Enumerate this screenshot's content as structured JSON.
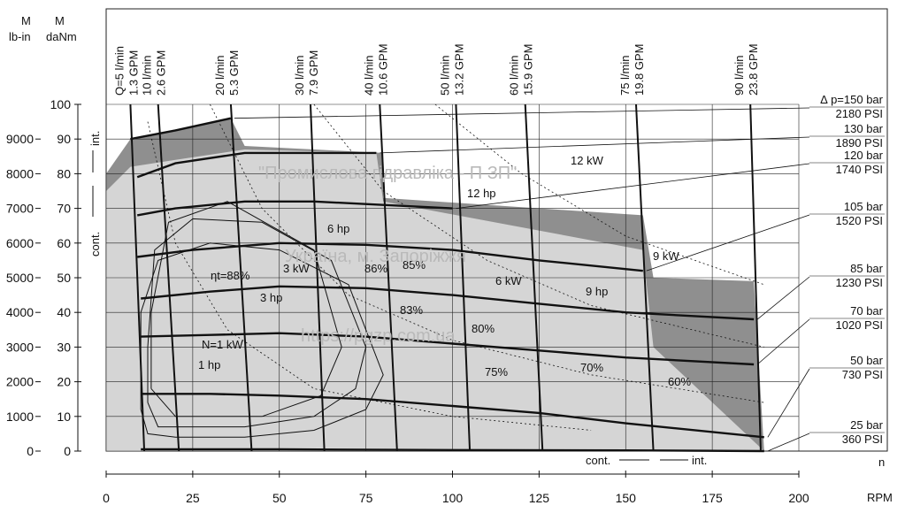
{
  "chart_data": {
    "type": "area",
    "axes": {
      "x": {
        "label": "RPM",
        "name": "n",
        "min": 0,
        "max": 200,
        "ticks": [
          0,
          25,
          50,
          75,
          100,
          125,
          150,
          175,
          200
        ]
      },
      "y_left_outer": {
        "label": "M",
        "unit": "lb-in",
        "min": 0,
        "max": 9000,
        "ticks": [
          0,
          1000,
          2000,
          3000,
          4000,
          5000,
          6000,
          7000,
          8000,
          9000
        ]
      },
      "y_left_inner": {
        "label": "M",
        "unit": "daNm",
        "min": 0,
        "max": 100,
        "ticks": [
          0,
          10,
          20,
          30,
          40,
          50,
          60,
          70,
          80,
          90,
          100
        ]
      }
    },
    "flow_lines": [
      {
        "lpm": "Q=5 l/min",
        "gpm": "1.3 GPM",
        "rpm_top": 7,
        "rpm_bottom": 11
      },
      {
        "lpm": "10 l/min",
        "gpm": "2.6 GPM",
        "rpm_top": 15,
        "rpm_bottom": 21
      },
      {
        "lpm": "20 l/min",
        "gpm": "5.3 GPM",
        "rpm_top": 36,
        "rpm_bottom": 42
      },
      {
        "lpm": "30 l/min",
        "gpm": "7.9 GPM",
        "rpm_top": 59,
        "rpm_bottom": 63
      },
      {
        "lpm": "40 l/min",
        "gpm": "10.6 GPM",
        "rpm_top": 79,
        "rpm_bottom": 84
      },
      {
        "lpm": "50 l/min",
        "gpm": "13.2 GPM",
        "rpm_top": 101,
        "rpm_bottom": 105
      },
      {
        "lpm": "60 l/min",
        "gpm": "15.9 GPM",
        "rpm_top": 121,
        "rpm_bottom": 126
      },
      {
        "lpm": "75 l/min",
        "gpm": "19.8 GPM",
        "rpm_top": 153,
        "rpm_bottom": 158
      },
      {
        "lpm": "90 l/min",
        "gpm": "23.8 GPM",
        "rpm_top": 186,
        "rpm_bottom": 189
      }
    ],
    "pressure_lines": [
      {
        "bar": "∆ p=150 bar",
        "psi": "2180 PSI",
        "points": [
          [
            7,
            90
          ],
          [
            20,
            92.5
          ],
          [
            36,
            96
          ]
        ]
      },
      {
        "bar": "130 bar",
        "psi": "1890 PSI",
        "points": [
          [
            9,
            79
          ],
          [
            20,
            83
          ],
          [
            40,
            86
          ],
          [
            60,
            86
          ],
          [
            78,
            86
          ]
        ]
      },
      {
        "bar": "120 bar",
        "psi": "1740 PSI",
        "points": [
          [
            9,
            68
          ],
          [
            20,
            70
          ],
          [
            40,
            72
          ],
          [
            60,
            72
          ],
          [
            80,
            71
          ],
          [
            100,
            70
          ]
        ]
      },
      {
        "bar": "105 bar",
        "psi": "1520 PSI",
        "points": [
          [
            9,
            56
          ],
          [
            25,
            58
          ],
          [
            50,
            60
          ],
          [
            75,
            59.5
          ],
          [
            100,
            58
          ],
          [
            125,
            55
          ],
          [
            155,
            52
          ]
        ]
      },
      {
        "bar": "85 bar",
        "psi": "1230 PSI",
        "points": [
          [
            10,
            44
          ],
          [
            30,
            46
          ],
          [
            50,
            47.5
          ],
          [
            75,
            47
          ],
          [
            100,
            45
          ],
          [
            125,
            42.5
          ],
          [
            150,
            40
          ],
          [
            187,
            38
          ]
        ]
      },
      {
        "bar": "70 bar",
        "psi": "1020 PSI",
        "points": [
          [
            10,
            33
          ],
          [
            30,
            33.5
          ],
          [
            50,
            34
          ],
          [
            75,
            33
          ],
          [
            100,
            31
          ],
          [
            125,
            29
          ],
          [
            150,
            27
          ],
          [
            187,
            25
          ]
        ]
      },
      {
        "bar": "50 bar",
        "psi": "730 PSI",
        "points": [
          [
            10,
            16.5
          ],
          [
            30,
            16.5
          ],
          [
            50,
            16
          ],
          [
            75,
            15
          ],
          [
            100,
            13
          ],
          [
            125,
            11
          ],
          [
            150,
            8
          ],
          [
            190,
            4
          ]
        ]
      },
      {
        "bar": "25 bar",
        "psi": "360 PSI",
        "points": [
          [
            10,
            0.5
          ],
          [
            50,
            0.5
          ],
          [
            100,
            0.3
          ],
          [
            150,
            0.2
          ],
          [
            190,
            0
          ]
        ]
      }
    ],
    "efficiency_labels": [
      "ηt=88%",
      "86%",
      "85%",
      "83%",
      "80%",
      "75%",
      "70%",
      "60%"
    ],
    "power_labels": [
      "N=1 kW",
      "1 hp",
      "3 hp",
      "3 kW",
      "6 hp",
      "6 kW",
      "9 hp",
      "9 kW",
      "12 hp",
      "12 kW"
    ],
    "region_labels": {
      "int": "int.",
      "cont": "cont."
    },
    "watermarks": [
      "\"Промислова гідравліка - П ЗП\"",
      "Україна, м. Запоріжжя",
      "https://pgzp.com.ua"
    ]
  }
}
